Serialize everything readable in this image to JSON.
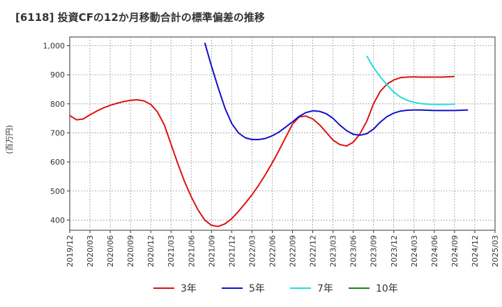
{
  "title": "[6118]  投資CFの12か月移動合計の標準偏差の推移",
  "chart_data": {
    "type": "line",
    "title": "[6118]  投資CFの12か月移動合計の標準偏差の推移",
    "ylabel": "(百万円)",
    "xlabel": "",
    "ylim": [
      365,
      1030
    ],
    "y_ticks": [
      400,
      500,
      600,
      700,
      800,
      900,
      1000
    ],
    "y_tick_labels": [
      "400",
      "500",
      "600",
      "700",
      "800",
      "900",
      "1,000"
    ],
    "x_tick_labels": [
      "2019/12",
      "2020/03",
      "2020/06",
      "2020/09",
      "2020/12",
      "2021/03",
      "2021/06",
      "2021/09",
      "2021/12",
      "2022/03",
      "2022/06",
      "2022/09",
      "2022/12",
      "2023/03",
      "2023/06",
      "2023/09",
      "2023/12",
      "2024/03",
      "2024/06",
      "2024/09",
      "2024/12",
      "2025/03"
    ],
    "grid": true,
    "legend_position": "bottom",
    "series": [
      {
        "name": "3年",
        "color": "#dd1111",
        "start": "2019/12",
        "values": [
          760,
          745,
          748,
          762,
          775,
          786,
          795,
          802,
          808,
          812,
          814,
          810,
          798,
          772,
          728,
          662,
          595,
          533,
          480,
          435,
          400,
          382,
          378,
          387,
          405,
          430,
          458,
          487,
          520,
          557,
          597,
          640,
          685,
          730,
          755,
          758,
          748,
          728,
          702,
          675,
          660,
          655,
          668,
          697,
          740,
          800,
          843,
          868,
          882,
          890,
          892,
          893,
          892,
          892,
          892,
          892,
          893,
          894
        ]
      },
      {
        "name": "5年",
        "color": "#1111cc",
        "start": "2021/08",
        "values": [
          1010,
          930,
          855,
          785,
          732,
          700,
          683,
          677,
          677,
          681,
          690,
          703,
          720,
          738,
          757,
          770,
          776,
          774,
          766,
          750,
          727,
          708,
          695,
          692,
          697,
          713,
          737,
          756,
          768,
          775,
          778,
          779,
          779,
          778,
          777,
          777,
          777,
          777,
          778,
          779
        ]
      },
      {
        "name": "7年",
        "color": "#22dddd",
        "start": "2023/08",
        "values": [
          965,
          925,
          893,
          865,
          840,
          823,
          812,
          805,
          801,
          799,
          798,
          798,
          798,
          799
        ]
      },
      {
        "name": "10年",
        "color": "#118811",
        "start": "",
        "values": []
      }
    ]
  }
}
